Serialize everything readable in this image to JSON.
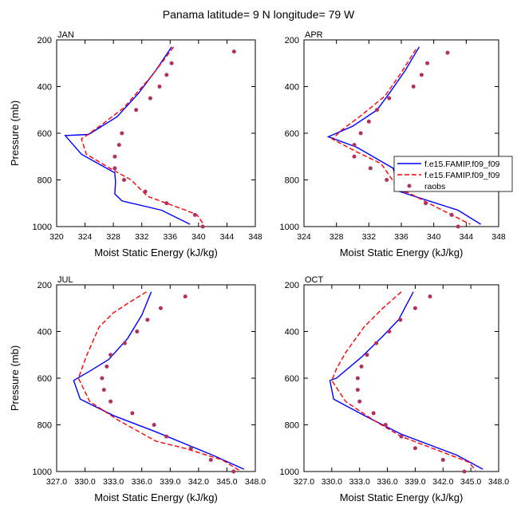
{
  "title": "Panama  latitude= 9 N longitude= 79 W",
  "colors": {
    "model1": "#0000ff",
    "model2": "#ff0000",
    "obs": "#b03060",
    "axis": "#000000"
  },
  "chart_data": [
    {
      "type": "line",
      "panel": "JAN",
      "xlabel": "Moist Static Energy (kJ/kg)",
      "ylabel": "Pressure (mb)",
      "xlim": [
        320,
        348
      ],
      "ylim": [
        1000,
        200
      ],
      "y_reversed": true,
      "xticks": [
        320,
        324,
        328,
        332,
        336,
        340,
        344,
        348
      ],
      "xtick_labels": [
        "320",
        "324",
        "328",
        "332",
        "336",
        "340",
        "344",
        "348"
      ],
      "yticks": [
        200,
        400,
        600,
        800,
        1000
      ],
      "ytick_labels": [
        "200",
        "400",
        "600",
        "800",
        "1000"
      ],
      "series": [
        {
          "kind": "line-solid",
          "points": [
            [
              336.2,
              230
            ],
            [
              334,
              330
            ],
            [
              331.5,
              430
            ],
            [
              328.5,
              530
            ],
            [
              324.5,
              605
            ],
            [
              321.2,
              610
            ],
            [
              323.5,
              690
            ],
            [
              328.2,
              770
            ],
            [
              328.3,
              810
            ],
            [
              328.2,
              860
            ],
            [
              329.2,
              890
            ],
            [
              334.8,
              930
            ],
            [
              338.8,
              990
            ]
          ]
        },
        {
          "kind": "line-dashed",
          "points": [
            [
              336.5,
              230
            ],
            [
              333.5,
              350
            ],
            [
              329.5,
              490
            ],
            [
              326.5,
              560
            ],
            [
              323.5,
              625
            ],
            [
              324.2,
              690
            ],
            [
              327.5,
              750
            ],
            [
              330.5,
              800
            ],
            [
              332.8,
              870
            ],
            [
              338.2,
              930
            ],
            [
              339.8,
              950
            ],
            [
              340.7,
              990
            ]
          ]
        },
        {
          "kind": "points",
          "points": [
            [
              345,
              250
            ],
            [
              336.2,
              300
            ],
            [
              335.5,
              350
            ],
            [
              334.5,
              400
            ],
            [
              333.2,
              450
            ],
            [
              331.2,
              500
            ],
            [
              329.2,
              600
            ],
            [
              328.8,
              650
            ],
            [
              328.2,
              700
            ],
            [
              328.2,
              750
            ],
            [
              329.5,
              800
            ],
            [
              332.5,
              850
            ],
            [
              335.5,
              900
            ],
            [
              339.5,
              950
            ],
            [
              340.6,
              1000
            ]
          ]
        }
      ]
    },
    {
      "type": "line",
      "panel": "APR",
      "xlabel": "Moist Static Energy (kJ/kg)",
      "ylabel": "",
      "xlim": [
        324,
        348
      ],
      "ylim": [
        1000,
        200
      ],
      "y_reversed": true,
      "xticks": [
        324,
        328,
        332,
        336,
        340,
        344,
        348
      ],
      "xtick_labels": [
        "324",
        "328",
        "332",
        "336",
        "340",
        "344",
        "348"
      ],
      "yticks": [
        200,
        400,
        600,
        800,
        1000
      ],
      "ytick_labels": [
        "200",
        "400",
        "600",
        "800",
        "1000"
      ],
      "series": [
        {
          "kind": "line-solid",
          "points": [
            [
              338.2,
              230
            ],
            [
              336.5,
              330
            ],
            [
              334.5,
              430
            ],
            [
              333,
              500
            ],
            [
              330,
              570
            ],
            [
              327,
              615
            ],
            [
              330.5,
              660
            ],
            [
              335,
              750
            ],
            [
              335.8,
              850
            ],
            [
              343,
              930
            ],
            [
              345.8,
              990
            ]
          ]
        },
        {
          "kind": "line-dashed",
          "points": [
            [
              337.8,
              240
            ],
            [
              336,
              340
            ],
            [
              334,
              440
            ],
            [
              331.2,
              520
            ],
            [
              328.5,
              590
            ],
            [
              327.5,
              625
            ],
            [
              330.5,
              680
            ],
            [
              333.5,
              730
            ],
            [
              335.5,
              830
            ],
            [
              340.5,
              920
            ],
            [
              344.5,
              990
            ]
          ]
        },
        {
          "kind": "points",
          "points": [
            [
              341.7,
              255
            ],
            [
              339.2,
              300
            ],
            [
              338.5,
              350
            ],
            [
              337.5,
              400
            ],
            [
              334.5,
              450
            ],
            [
              333,
              500
            ],
            [
              332,
              550
            ],
            [
              331,
              600
            ],
            [
              330.2,
              650
            ],
            [
              330.2,
              700
            ],
            [
              332.2,
              750
            ],
            [
              334.2,
              800
            ],
            [
              336.5,
              825
            ],
            [
              336.5,
              850
            ],
            [
              339,
              900
            ],
            [
              342.2,
              950
            ],
            [
              343,
              1000
            ]
          ]
        }
      ],
      "legend": {
        "placement": "right",
        "entries": [
          {
            "label": "f.e15.FAMIP.f09_f09",
            "kind": "line-solid"
          },
          {
            "label": "f.e15.FAMIP.f09_f09",
            "kind": "line-dashed"
          },
          {
            "label": "raobs",
            "kind": "points"
          }
        ]
      }
    },
    {
      "type": "line",
      "panel": "JUL",
      "xlabel": "Moist Static Energy (kJ/kg)",
      "ylabel": "Pressure (mb)",
      "xlim": [
        327,
        348
      ],
      "ylim": [
        1000,
        200
      ],
      "y_reversed": true,
      "xticks": [
        327,
        330,
        333,
        336,
        339,
        342,
        345,
        348
      ],
      "xtick_labels": [
        "327.0",
        "330.0",
        "333.0",
        "336.0",
        "339.0",
        "342.0",
        "345.0",
        "348.0"
      ],
      "yticks": [
        200,
        400,
        600,
        800,
        1000
      ],
      "ytick_labels": [
        "200",
        "400",
        "600",
        "800",
        "1000"
      ],
      "series": [
        {
          "kind": "line-solid",
          "points": [
            [
              337,
              230
            ],
            [
              336,
              330
            ],
            [
              334.5,
              430
            ],
            [
              332.5,
              520
            ],
            [
              330.5,
              570
            ],
            [
              328.8,
              610
            ],
            [
              329.5,
              690
            ],
            [
              333,
              760
            ],
            [
              337.5,
              830
            ],
            [
              343.5,
              930
            ],
            [
              346.8,
              990
            ]
          ]
        },
        {
          "kind": "line-dashed",
          "points": [
            [
              336.5,
              230
            ],
            [
              334.5,
              280
            ],
            [
              333,
              320
            ],
            [
              331.5,
              380
            ],
            [
              330.2,
              500
            ],
            [
              329.3,
              600
            ],
            [
              330.5,
              700
            ],
            [
              333.5,
              780
            ],
            [
              337.5,
              870
            ],
            [
              340.5,
              900
            ],
            [
              344.5,
              950
            ],
            [
              346.5,
              1000
            ]
          ]
        },
        {
          "kind": "points",
          "points": [
            [
              340.6,
              250
            ],
            [
              338,
              300
            ],
            [
              336.6,
              350
            ],
            [
              335.5,
              400
            ],
            [
              334.2,
              450
            ],
            [
              332.7,
              500
            ],
            [
              332.3,
              550
            ],
            [
              331.8,
              600
            ],
            [
              332,
              650
            ],
            [
              332.7,
              700
            ],
            [
              335,
              750
            ],
            [
              337.3,
              800
            ],
            [
              338.6,
              850
            ],
            [
              341.2,
              900
            ],
            [
              343.3,
              950
            ],
            [
              345.7,
              1000
            ]
          ]
        }
      ]
    },
    {
      "type": "line",
      "panel": "OCT",
      "xlabel": "Moist Static Energy (kJ/kg)",
      "ylabel": "",
      "xlim": [
        327,
        348
      ],
      "ylim": [
        1000,
        200
      ],
      "y_reversed": true,
      "xticks": [
        327,
        330,
        333,
        336,
        339,
        342,
        345,
        348
      ],
      "xtick_labels": [
        "327.0",
        "330.0",
        "333.0",
        "336.0",
        "339.0",
        "342.0",
        "345.0",
        "348.0"
      ],
      "yticks": [
        200,
        400,
        600,
        800,
        1000
      ],
      "ytick_labels": [
        "200",
        "400",
        "600",
        "800",
        "1000"
      ],
      "series": [
        {
          "kind": "line-solid",
          "points": [
            [
              338.8,
              230
            ],
            [
              337.2,
              350
            ],
            [
              335.5,
              420
            ],
            [
              333.2,
              510
            ],
            [
              330.5,
              600
            ],
            [
              329.8,
              610
            ],
            [
              330.2,
              690
            ],
            [
              333.5,
              760
            ],
            [
              337.5,
              840
            ],
            [
              343.5,
              930
            ],
            [
              346.3,
              990
            ]
          ]
        },
        {
          "kind": "line-dashed",
          "points": [
            [
              337.5,
              230
            ],
            [
              335.5,
              300
            ],
            [
              333.5,
              380
            ],
            [
              331.5,
              490
            ],
            [
              330.5,
              560
            ],
            [
              330,
              610
            ],
            [
              331.5,
              700
            ],
            [
              334.5,
              780
            ],
            [
              337.5,
              850
            ],
            [
              341.5,
              910
            ],
            [
              344.8,
              960
            ],
            [
              345.5,
              995
            ]
          ]
        },
        {
          "kind": "points",
          "points": [
            [
              340.6,
              250
            ],
            [
              339,
              300
            ],
            [
              337.4,
              350
            ],
            [
              336.2,
              400
            ],
            [
              334.8,
              450
            ],
            [
              333.8,
              500
            ],
            [
              333.2,
              550
            ],
            [
              332.8,
              600
            ],
            [
              332.8,
              650
            ],
            [
              333,
              700
            ],
            [
              334.5,
              750
            ],
            [
              335.8,
              800
            ],
            [
              337.5,
              850
            ],
            [
              339,
              900
            ],
            [
              342,
              950
            ],
            [
              344.3,
              1000
            ]
          ]
        }
      ]
    }
  ]
}
